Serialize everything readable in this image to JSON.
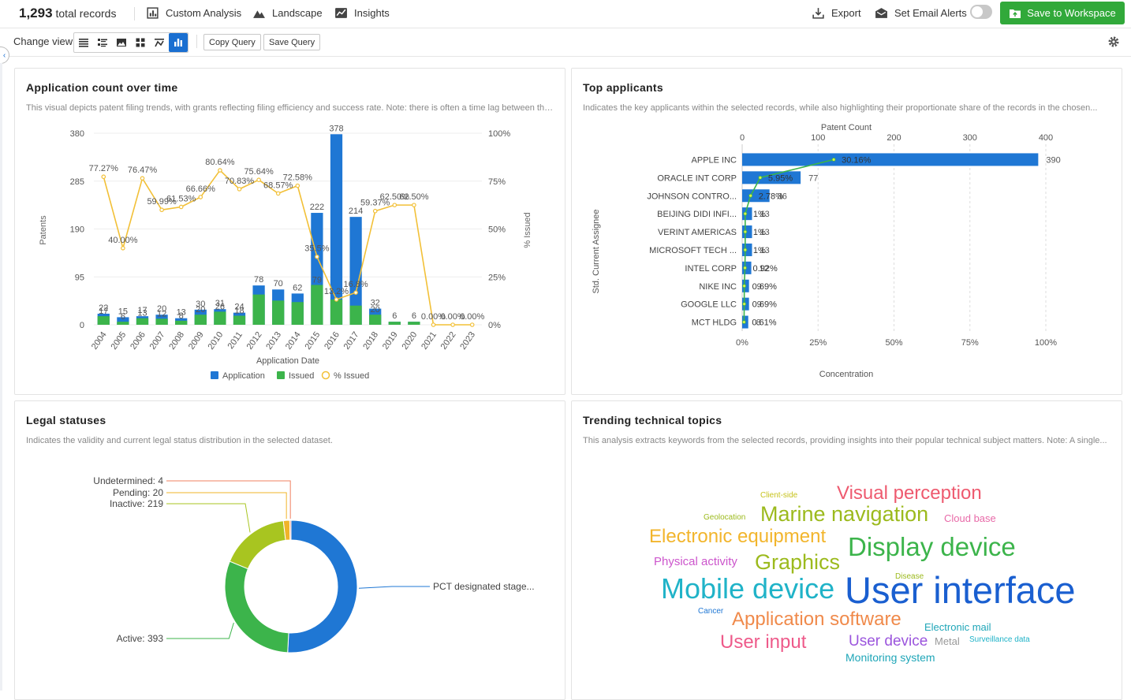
{
  "header": {
    "record_count": "1,293",
    "record_suffix": "total records",
    "nav": [
      {
        "label": "Custom Analysis",
        "icon": "custom-analysis-icon"
      },
      {
        "label": "Landscape",
        "icon": "landscape-icon"
      },
      {
        "label": "Insights",
        "icon": "insights-icon"
      }
    ],
    "export_label": "Export",
    "alerts_label": "Set Email Alerts",
    "alerts_on": false,
    "save_label": "Save to Workspace"
  },
  "toolbar": {
    "change_view_label": "Change view",
    "views": [
      "list-view-icon",
      "detail-list-view-icon",
      "image-view-icon",
      "grid-view-icon",
      "flow-view-icon",
      "chart-view-icon"
    ],
    "active_view": 5,
    "copy_query_label": "Copy Query",
    "save_query_label": "Save Query"
  },
  "panels": {
    "app_count": {
      "title": "Application count over time",
      "description": "This visual depicts patent filing trends, with grants reflecting filing efficiency and success rate. Note: there is often a time lag between the..."
    },
    "top_applicants": {
      "title": "Top applicants",
      "description": "Indicates the key applicants within the selected records, while also highlighting their proportionate share of the records in the chosen..."
    },
    "legal": {
      "title": "Legal statuses",
      "description": "Indicates the validity and current legal status distribution in the selected dataset."
    },
    "topics": {
      "title": "Trending technical topics",
      "description": "This analysis extracts keywords from the selected records, providing insights into their popular technical subject matters. Note: A single..."
    }
  },
  "chart_data": [
    {
      "type": "bar",
      "title": "Application count over time",
      "xlabel": "Application Date",
      "ylabel": "Patents",
      "y2label": "% Issued",
      "ylim": [
        0,
        380
      ],
      "yticks": [
        "0",
        "95",
        "190",
        "285",
        "380"
      ],
      "y2ticks": [
        "0%",
        "25%",
        "50%",
        "75%",
        "100%"
      ],
      "categories": [
        "2004",
        "2005",
        "2006",
        "2007",
        "2008",
        "2009",
        "2010",
        "2011",
        "2012",
        "2013",
        "2014",
        "2015",
        "2016",
        "2017",
        "2018",
        "2019",
        "2020",
        "2021",
        "2022",
        "2023"
      ],
      "series": [
        {
          "name": "Application",
          "color": "#1f77d4",
          "values": [
            22,
            15,
            17,
            20,
            13,
            30,
            31,
            24,
            78,
            70,
            62,
            222,
            378,
            214,
            32,
            6,
            6,
            0,
            0,
            0
          ]
        },
        {
          "name": "Issued",
          "color": "#3cb44b",
          "values": [
            17,
            6,
            13,
            12,
            8,
            20,
            26,
            18,
            60,
            48,
            45,
            79,
            50,
            38,
            20,
            6,
            6,
            0,
            0,
            0
          ]
        },
        {
          "name": "% Issued",
          "color": "#f2c037",
          "values": [
            77.27,
            40.0,
            76.47,
            59.99,
            61.53,
            66.66,
            80.64,
            70.83,
            75.64,
            68.57,
            72.58,
            35.5,
            13.2,
            16.8,
            59.37,
            62.5,
            62.5,
            0.0,
            0.0,
            0.0
          ]
        }
      ],
      "pct_labels": [
        "77.27%",
        "40.00%",
        "76.47%",
        "59.99%",
        "61.53%",
        "66.66%",
        "80.64%",
        "70.83%",
        "75.64%",
        "68.57%",
        "72.58%",
        "35.5%",
        "13.2%",
        "16.8%",
        "59.37%",
        "62.50%",
        "62.50%",
        "0.00%",
        "0.00%",
        "0.00%"
      ],
      "bar_labels": [
        "22",
        "15",
        "17",
        "20",
        "13",
        "30",
        "31",
        "24",
        "78",
        "70",
        "62",
        "222",
        "378",
        "214",
        "32",
        "6",
        "6",
        "",
        "",
        ""
      ],
      "issued_labels": [
        "17",
        "6",
        "13",
        "12",
        "8",
        "20",
        "26",
        "18",
        "",
        "",
        "",
        "79",
        "",
        "",
        "20",
        "",
        "",
        "",
        "",
        ""
      ],
      "legend": "bottom"
    },
    {
      "type": "bar",
      "orientation": "horizontal",
      "title": "Top applicants",
      "xlabel": "Patent Count",
      "x2label": "Concentration",
      "ylabel": "Std. Current Assignee",
      "xlim": [
        0,
        400
      ],
      "xticks": [
        "0",
        "100",
        "200",
        "300",
        "400"
      ],
      "x2ticks": [
        "0%",
        "25%",
        "50%",
        "75%",
        "100%"
      ],
      "categories": [
        "APPLE INC",
        "ORACLE INT CORP",
        "JOHNSON CONTRO...",
        "BEIJING DIDI INFI...",
        "VERINT AMERICAS",
        "MICROSOFT TECH ...",
        "INTEL CORP",
        "NIKE INC",
        "GOOGLE LLC",
        "MCT HLDG"
      ],
      "values": [
        390,
        77,
        36,
        13,
        13,
        13,
        12,
        9,
        9,
        8
      ],
      "value_labels": [
        "390",
        "77",
        "36",
        "13",
        "13",
        "13",
        "12",
        "9",
        "9",
        "8"
      ],
      "concentration": [
        30.16,
        5.95,
        2.78,
        1.0,
        1.0,
        1.0,
        0.92,
        0.69,
        0.69,
        0.61
      ],
      "concentration_labels": [
        "30.16%",
        "5.95%",
        "2.78%",
        "1%",
        "1%",
        "1%",
        "0.92%",
        "0.69%",
        "0.69%",
        "0.61%"
      ],
      "bar_color": "#1f77d4",
      "line_color": "#3cb44b"
    },
    {
      "type": "pie",
      "title": "Legal statuses",
      "donut": true,
      "slices": [
        {
          "label": "PCT designated stage...",
          "value": 657,
          "color": "#1f77d4"
        },
        {
          "label": "Active: 393",
          "value": 393,
          "color": "#3cb44b"
        },
        {
          "label": "Inactive: 219",
          "value": 219,
          "color": "#a8c520"
        },
        {
          "label": "Pending: 20",
          "value": 20,
          "color": "#f0b429"
        },
        {
          "label": "Undetermined: 4",
          "value": 4,
          "color": "#f08060"
        }
      ]
    }
  ],
  "word_cloud": [
    {
      "text": "Client-side",
      "size": 10,
      "color": "#c6c21c"
    },
    {
      "text": "Visual perception",
      "size": 24,
      "color": "#ee5a6f"
    },
    {
      "text": "Geolocation",
      "size": 10,
      "color": "#9cba1d"
    },
    {
      "text": "Marine navigation",
      "size": 27,
      "color": "#9cba1d"
    },
    {
      "text": "Cloud base",
      "size": 13,
      "color": "#e86aa8"
    },
    {
      "text": "Electronic equipment",
      "size": 24,
      "color": "#f2b52c"
    },
    {
      "text": "Display device",
      "size": 33,
      "color": "#3cb44b"
    },
    {
      "text": "Physical activity",
      "size": 15,
      "color": "#cc55cc"
    },
    {
      "text": "Graphics",
      "size": 27,
      "color": "#9cba1d"
    },
    {
      "text": "Disease",
      "size": 10,
      "color": "#9cba1d"
    },
    {
      "text": "Mobile device",
      "size": 36,
      "color": "#20b3c8"
    },
    {
      "text": "User interface",
      "size": 47,
      "color": "#1a5fd0"
    },
    {
      "text": "Cancer",
      "size": 10,
      "color": "#1f77d4"
    },
    {
      "text": "Application software",
      "size": 24,
      "color": "#f08a4b"
    },
    {
      "text": "Electronic mail",
      "size": 13,
      "color": "#1fa6b8"
    },
    {
      "text": "User input",
      "size": 24,
      "color": "#ee5a8a"
    },
    {
      "text": "User device",
      "size": 19,
      "color": "#9b55dd"
    },
    {
      "text": "Metal",
      "size": 13,
      "color": "#999999"
    },
    {
      "text": "Surveillance data",
      "size": 10,
      "color": "#20b3c8"
    },
    {
      "text": "Monitoring system",
      "size": 14,
      "color": "#1fa6b8"
    }
  ]
}
